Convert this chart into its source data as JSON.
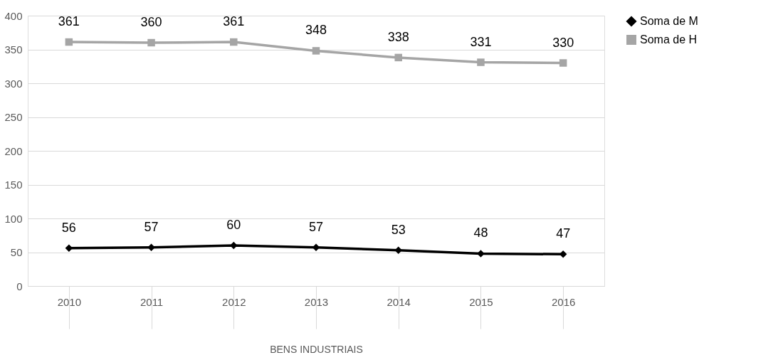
{
  "chart_data": {
    "type": "line",
    "xlabel": "BENS INDUSTRIAIS",
    "categories": [
      "2010",
      "2011",
      "2012",
      "2013",
      "2014",
      "2015",
      "2016"
    ],
    "series": [
      {
        "name": "Soma de M",
        "color": "#000000",
        "marker": "diamond",
        "values": [
          56,
          57,
          60,
          57,
          53,
          48,
          47
        ]
      },
      {
        "name": "Soma de H",
        "color": "#a5a5a5",
        "marker": "square",
        "values": [
          361,
          360,
          361,
          348,
          338,
          331,
          330
        ]
      }
    ],
    "ylim": [
      0,
      400
    ],
    "yticks": [
      0,
      50,
      100,
      150,
      200,
      250,
      300,
      350,
      400
    ],
    "grid": "y",
    "legend": "right",
    "data_labels": true,
    "line_style": "solid"
  }
}
